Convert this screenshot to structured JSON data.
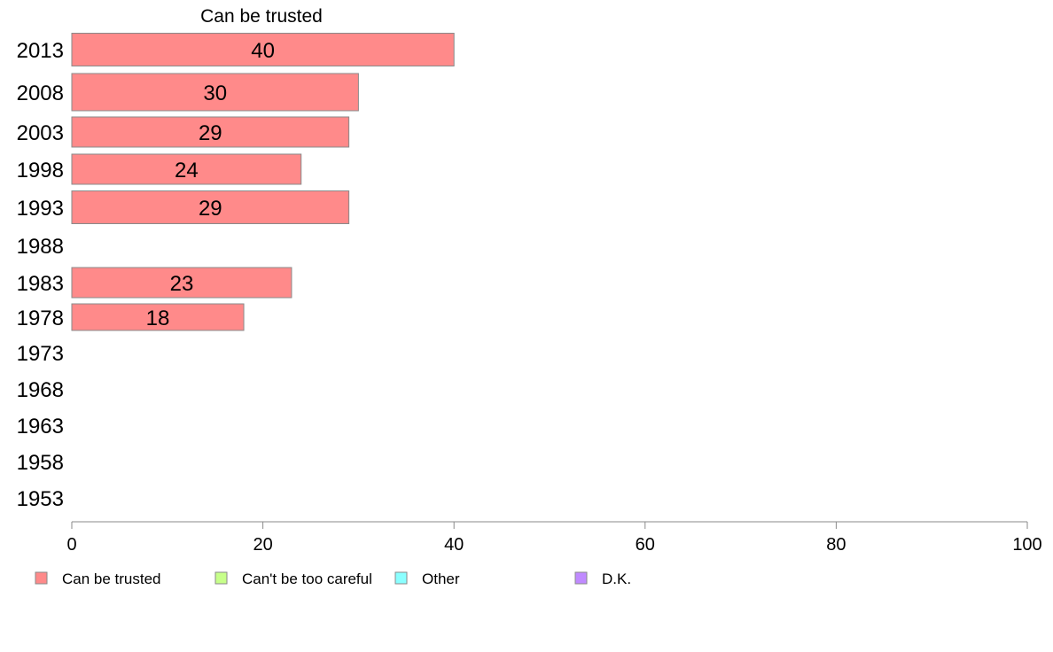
{
  "chart_data": {
    "type": "bar",
    "orientation": "horizontal",
    "title": "Can be trusted",
    "xlabel": "",
    "ylabel": "",
    "categories": [
      "2013",
      "2008",
      "2003",
      "1998",
      "1993",
      "1988",
      "1983",
      "1978",
      "1973",
      "1968",
      "1963",
      "1958",
      "1953"
    ],
    "series": [
      {
        "name": "Can be trusted",
        "values": [
          40,
          30,
          29,
          24,
          29,
          null,
          23,
          18,
          null,
          null,
          null,
          null,
          null
        ]
      }
    ],
    "xlim": [
      0,
      100
    ],
    "xticks": [
      0,
      20,
      40,
      60,
      80,
      100
    ],
    "grid": false,
    "legend_position": "bottom"
  },
  "legend": {
    "items": [
      {
        "label": "Can be trusted",
        "color": "#ff8a8a"
      },
      {
        "label": "Can't be too careful",
        "color": "#c7ff8a"
      },
      {
        "label": "Other",
        "color": "#8affff"
      },
      {
        "label": "D.K.",
        "color": "#c08aff"
      }
    ]
  },
  "colors": {
    "bar_fill": "#ff8a8a",
    "bar_stroke": "#8a8a8a",
    "axis": "#8a8a8a"
  }
}
